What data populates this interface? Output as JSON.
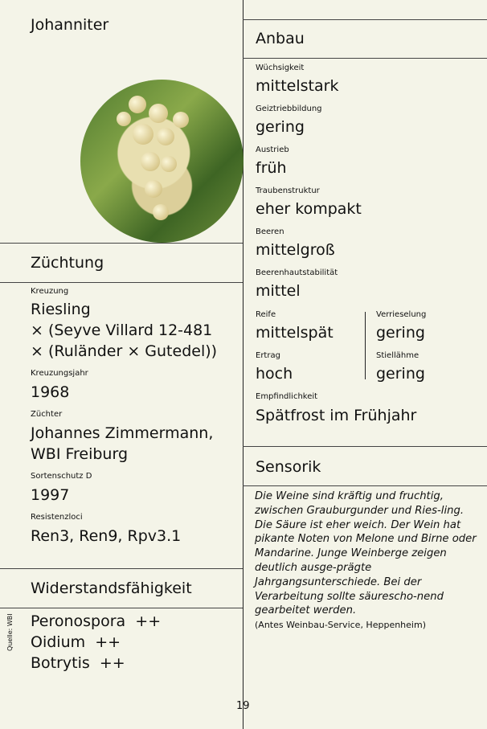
{
  "title": "Johanniter",
  "zuechtung": {
    "heading": "Züchtung",
    "items": [
      {
        "label": "Kreuzung",
        "lines": [
          "Riesling",
          "× (Seyve Villard 12-481",
          "× (Ruländer × Gutedel))"
        ]
      },
      {
        "label": "Kreuzungsjahr",
        "lines": [
          "1968"
        ]
      },
      {
        "label": "Züchter",
        "lines": [
          "Johannes Zimmermann,",
          "WBI Freiburg"
        ]
      },
      {
        "label": "Sortenschutz D",
        "lines": [
          "1997"
        ]
      },
      {
        "label": "Resistenzloci",
        "lines": [
          "Ren3, Ren9, Rpv3.1"
        ]
      }
    ]
  },
  "widerstand": {
    "heading": "Widerstandsfähigkeit",
    "items": [
      "Peronospora  ++",
      "Oidium  ++",
      "Botrytis  ++"
    ],
    "source": "Quelle: WBI"
  },
  "anbau": {
    "heading": "Anbau",
    "items": [
      {
        "label": "Wüchsigkeit",
        "value": "mittelstark"
      },
      {
        "label": "Geiztriebbildung",
        "value": "gering"
      },
      {
        "label": "Austrieb",
        "value": "früh"
      },
      {
        "label": "Traubenstruktur",
        "value": "eher kompakt"
      },
      {
        "label": "Beeren",
        "value": "mittelgroß"
      },
      {
        "label": "Beerenhautstabilität",
        "value": "mittel"
      },
      {
        "label": "Reife",
        "value": "mittelspät"
      },
      {
        "label": "Verrieselung",
        "value": "gering"
      },
      {
        "label": "Ertrag",
        "value": "hoch"
      },
      {
        "label": "Stiellähme",
        "value": "gering"
      },
      {
        "label": "Empfindlichkeit",
        "value": "Spätfrost im Frühjahr"
      }
    ]
  },
  "sensorik": {
    "heading": "Sensorik",
    "text": "Die Weine sind kräftig und fruchtig, zwischen Grauburgunder und Ries-ling. Die Säure ist eher weich. Der Wein hat pikante Noten von Melone und Birne oder Mandarine. Junge Weinberge zeigen deutlich ausge-prägte Jahrgangsunterschiede. Bei der Verarbeitung sollte säurescho-nend gearbeitet werden.",
    "source": "(Antes Weinbau-Service, Heppenheim)"
  },
  "page_number": "19"
}
